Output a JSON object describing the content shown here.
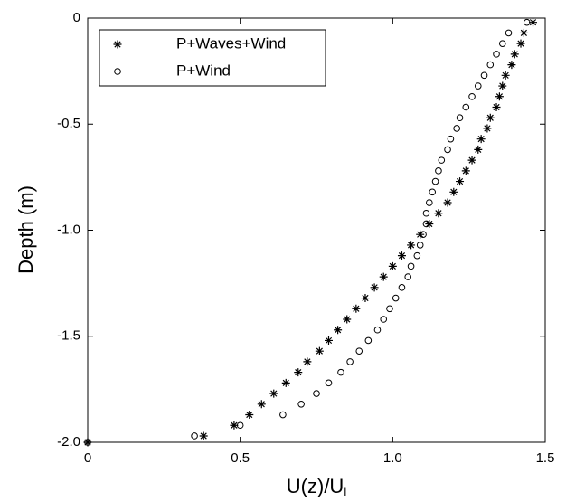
{
  "chart_data": {
    "type": "scatter",
    "xlabel": {
      "text": "U(z)/U",
      "sub": "l"
    },
    "ylabel": "Depth (m)",
    "xlim": [
      0,
      1.5
    ],
    "ylim": [
      -2.0,
      0
    ],
    "xticks": [
      0,
      0.5,
      {
        "value": 1,
        "label": "1.0"
      },
      1.5
    ],
    "yticks": [
      0,
      -0.5,
      {
        "value": -1,
        "label": "-1.0"
      },
      -1.5,
      {
        "value": -2,
        "label": "-2.0"
      }
    ],
    "legend": "upper left",
    "y": [
      -0.02,
      -0.07,
      -0.12,
      -0.17,
      -0.22,
      -0.27,
      -0.32,
      -0.37,
      -0.42,
      -0.47,
      -0.52,
      -0.57,
      -0.62,
      -0.67,
      -0.72,
      -0.77,
      -0.82,
      -0.87,
      -0.92,
      -0.97,
      -1.02,
      -1.07,
      -1.12,
      -1.17,
      -1.22,
      -1.27,
      -1.32,
      -1.37,
      -1.42,
      -1.47,
      -1.52,
      -1.57,
      -1.62,
      -1.67,
      -1.72,
      -1.77,
      -1.82,
      -1.87,
      -1.92,
      -1.97,
      -2.0
    ],
    "series": [
      {
        "name": "P+Waves+Wind",
        "marker": "star",
        "color": "#000000",
        "values": [
          1.46,
          1.43,
          1.42,
          1.4,
          1.39,
          1.37,
          1.36,
          1.35,
          1.34,
          1.32,
          1.31,
          1.29,
          1.28,
          1.26,
          1.24,
          1.22,
          1.2,
          1.18,
          1.15,
          1.12,
          1.09,
          1.06,
          1.03,
          1.0,
          0.97,
          0.94,
          0.91,
          0.88,
          0.85,
          0.82,
          0.79,
          0.76,
          0.72,
          0.69,
          0.65,
          0.61,
          0.57,
          0.53,
          0.48,
          0.38,
          0
        ]
      },
      {
        "name": "P+Wind",
        "marker": "circle",
        "color": "#000000",
        "values": [
          1.44,
          1.38,
          1.36,
          1.34,
          1.32,
          1.3,
          1.28,
          1.26,
          1.24,
          1.22,
          1.21,
          1.19,
          1.18,
          1.16,
          1.15,
          1.14,
          1.13,
          1.12,
          1.11,
          1.11,
          1.1,
          1.09,
          1.08,
          1.06,
          1.05,
          1.03,
          1.01,
          0.99,
          0.97,
          0.95,
          0.92,
          0.89,
          0.86,
          0.83,
          0.79,
          0.75,
          0.7,
          0.64,
          0.5,
          0.35,
          0
        ]
      }
    ]
  }
}
